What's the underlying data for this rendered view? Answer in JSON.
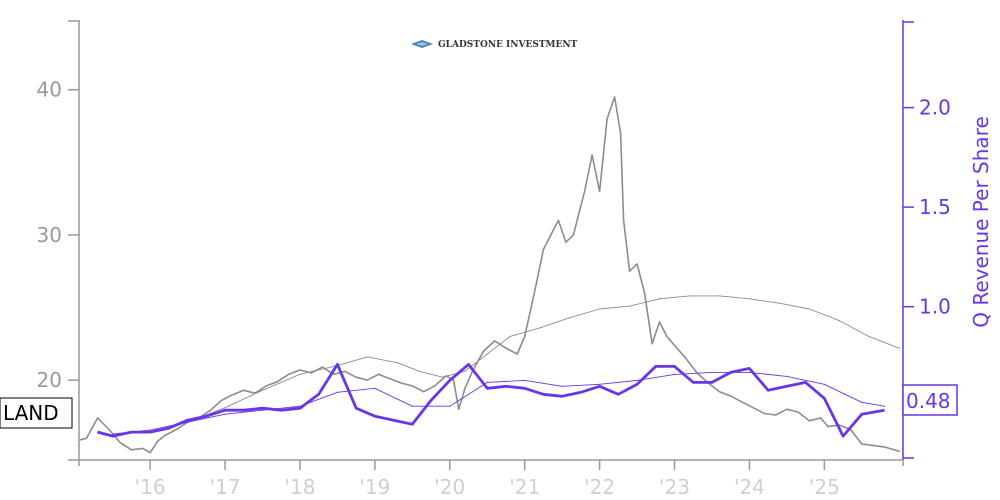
{
  "colors": {
    "price": "#8c8c8c",
    "revenue": "#6a35e8",
    "left_axis": "#999999",
    "right_axis": "#6a35e8",
    "x_axis": "#cfcfcf"
  },
  "logo": {
    "text": "GLADSTONE INVESTMENT",
    "icon": "diamond-logo-icon"
  },
  "ticker_label": "LAND",
  "last_value_label": "0.48",
  "chart_data": {
    "type": "line",
    "x_ticks": [
      "'16",
      "'17",
      "'18",
      "'19",
      "'20",
      "'21",
      "'22",
      "'23",
      "'24",
      "'25"
    ],
    "xlim": [
      2015.05,
      2026.05
    ],
    "ylim_left": [
      14.5,
      44.8
    ],
    "ylim_right": [
      0.23,
      2.44
    ],
    "left_ticks": [
      20,
      30,
      40
    ],
    "right_ticks": [
      "1.0",
      "1.5",
      "2.0"
    ],
    "ylabel_right": "Q Revenue Per Share",
    "series": [
      {
        "name": "LAND",
        "axis": "left",
        "x": [
          2015.0,
          2015.15,
          2015.3,
          2015.45,
          2015.6,
          2015.75,
          2015.9,
          2016.0,
          2016.1,
          2016.2,
          2016.35,
          2016.5,
          2016.65,
          2016.8,
          2016.95,
          2017.1,
          2017.25,
          2017.4,
          2017.55,
          2017.7,
          2017.85,
          2018.0,
          2018.15,
          2018.3,
          2018.45,
          2018.6,
          2018.75,
          2018.9,
          2019.05,
          2019.2,
          2019.35,
          2019.5,
          2019.65,
          2019.8,
          2019.95,
          2020.05,
          2020.12,
          2020.2,
          2020.3,
          2020.45,
          2020.6,
          2020.75,
          2020.9,
          2021.0,
          2021.15,
          2021.25,
          2021.35,
          2021.45,
          2021.55,
          2021.65,
          2021.8,
          2021.9,
          2022.0,
          2022.1,
          2022.2,
          2022.28,
          2022.32,
          2022.4,
          2022.5,
          2022.6,
          2022.7,
          2022.8,
          2022.9,
          2023.0,
          2023.15,
          2023.3,
          2023.45,
          2023.6,
          2023.75,
          2023.9,
          2024.05,
          2024.2,
          2024.35,
          2024.5,
          2024.65,
          2024.8,
          2024.95,
          2025.05,
          2025.2,
          2025.35,
          2025.5,
          2025.65,
          2025.8,
          2026.0
        ],
        "values": [
          15.8,
          16.0,
          17.4,
          16.6,
          15.7,
          15.2,
          15.3,
          15.0,
          15.8,
          16.2,
          16.6,
          17.1,
          17.4,
          17.9,
          18.6,
          19.0,
          19.3,
          19.1,
          19.6,
          19.9,
          20.4,
          20.7,
          20.5,
          20.9,
          20.4,
          20.6,
          20.2,
          20.0,
          20.4,
          20.1,
          19.8,
          19.6,
          19.2,
          19.6,
          20.3,
          20.0,
          18.0,
          19.4,
          20.6,
          22.0,
          22.7,
          22.2,
          21.8,
          23.0,
          26.5,
          29.0,
          30.0,
          31.0,
          29.5,
          30.0,
          33.0,
          35.5,
          33.0,
          38.0,
          39.5,
          37.0,
          31.0,
          27.5,
          28.0,
          26.0,
          22.5,
          24.0,
          23.0,
          22.4,
          21.5,
          20.5,
          19.8,
          19.2,
          18.9,
          18.5,
          18.1,
          17.7,
          17.6,
          18.0,
          17.8,
          17.2,
          17.4,
          16.8,
          16.9,
          16.6,
          15.6,
          15.5,
          15.4,
          15.1
        ]
      },
      {
        "name": "LAND",
        "axis": "left",
        "x": [
          2016.0,
          2016.5,
          2017.0,
          2017.5,
          2018.0,
          2018.5,
          2018.9,
          2019.3,
          2019.6,
          2019.9,
          2020.2,
          2020.5,
          2020.8,
          2021.2,
          2021.6,
          2022.0,
          2022.4,
          2022.8,
          2023.2,
          2023.6,
          2024.0,
          2024.4,
          2024.8,
          2025.2,
          2025.6,
          2026.0
        ],
        "values": [
          16.4,
          17.1,
          18.1,
          19.3,
          20.4,
          21.0,
          21.6,
          21.2,
          20.6,
          20.2,
          20.6,
          21.8,
          23.0,
          23.6,
          24.3,
          24.9,
          25.1,
          25.6,
          25.8,
          25.8,
          25.6,
          25.3,
          24.9,
          24.1,
          23.0,
          22.2
        ]
      },
      {
        "name": "Q Revenue Per Share",
        "axis": "right",
        "x": [
          2015.3,
          2015.5,
          2015.75,
          2016.0,
          2016.25,
          2016.5,
          2016.75,
          2017.0,
          2017.25,
          2017.5,
          2017.75,
          2018.0,
          2018.25,
          2018.5,
          2018.75,
          2019.0,
          2019.25,
          2019.5,
          2019.75,
          2020.0,
          2020.25,
          2020.5,
          2020.75,
          2021.0,
          2021.25,
          2021.5,
          2021.75,
          2022.0,
          2022.25,
          2022.5,
          2022.75,
          2023.0,
          2023.25,
          2023.5,
          2023.75,
          2024.0,
          2024.25,
          2024.5,
          2024.75,
          2025.0,
          2025.25,
          2025.5,
          2025.8
        ],
        "values": [
          0.37,
          0.35,
          0.37,
          0.37,
          0.39,
          0.43,
          0.45,
          0.48,
          0.48,
          0.49,
          0.48,
          0.49,
          0.56,
          0.71,
          0.49,
          0.45,
          0.43,
          0.41,
          0.53,
          0.63,
          0.71,
          0.59,
          0.6,
          0.59,
          0.56,
          0.55,
          0.57,
          0.6,
          0.56,
          0.61,
          0.7,
          0.7,
          0.62,
          0.62,
          0.67,
          0.69,
          0.58,
          0.6,
          0.62,
          0.54,
          0.35,
          0.46,
          0.48
        ]
      },
      {
        "name": "Q Revenue Per Share",
        "axis": "right",
        "x": [
          2015.5,
          2016.0,
          2016.5,
          2017.0,
          2017.5,
          2018.0,
          2018.5,
          2019.0,
          2019.5,
          2020.0,
          2020.5,
          2021.0,
          2021.5,
          2022.0,
          2022.5,
          2023.0,
          2023.5,
          2024.0,
          2024.5,
          2025.0,
          2025.5,
          2025.8
        ],
        "values": [
          0.36,
          0.38,
          0.42,
          0.46,
          0.48,
          0.5,
          0.57,
          0.59,
          0.5,
          0.5,
          0.62,
          0.63,
          0.6,
          0.61,
          0.63,
          0.66,
          0.67,
          0.67,
          0.65,
          0.61,
          0.52,
          0.5
        ]
      }
    ]
  }
}
